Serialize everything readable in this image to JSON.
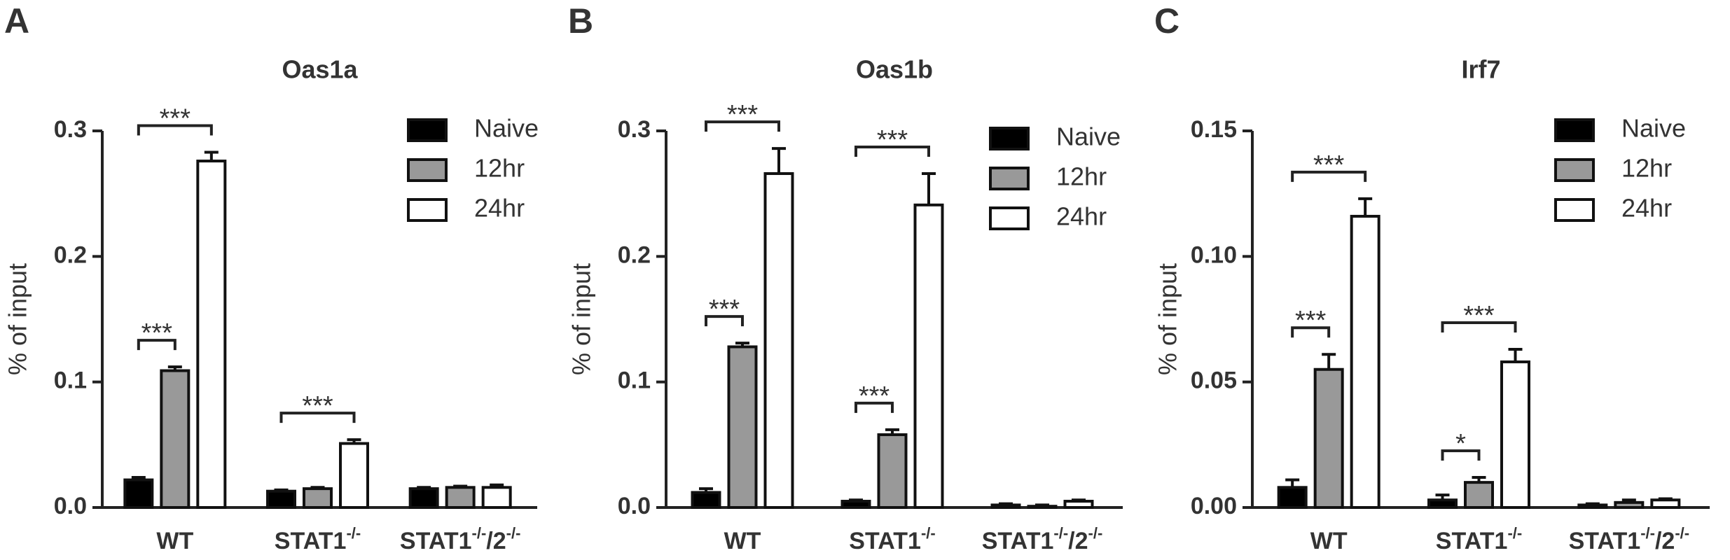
{
  "chart_data": [
    {
      "type": "bar",
      "panel": "A",
      "title": "Oas1a",
      "y_label": "% of input",
      "categories": [
        "WT",
        "STAT1-/-",
        "STAT1-/-/2-/-"
      ],
      "series": [
        {
          "name": "Naive",
          "color": "#000000",
          "values": [
            0.022,
            0.013,
            0.015
          ],
          "errors": [
            0.002,
            0.001,
            0.001
          ]
        },
        {
          "name": "12hr",
          "color": "#999999",
          "values": [
            0.109,
            0.015,
            0.016
          ],
          "errors": [
            0.003,
            0.001,
            0.001
          ]
        },
        {
          "name": "24hr",
          "color": "#ffffff",
          "values": [
            0.276,
            0.051,
            0.016
          ],
          "errors": [
            0.007,
            0.003,
            0.002
          ]
        }
      ],
      "ylim": [
        0,
        0.3
      ],
      "yticks": [
        {
          "value": 0,
          "label": "0.0"
        },
        0.1,
        0.2,
        0.3
      ],
      "legend": "upper right",
      "annotations": [
        {
          "text": "***",
          "category": 0,
          "series": [
            0,
            1
          ]
        },
        {
          "text": "***",
          "category": 0,
          "series": [
            0,
            2
          ]
        },
        {
          "text": "***",
          "category": 1,
          "series": [
            0,
            2
          ]
        }
      ]
    },
    {
      "type": "bar",
      "panel": "B",
      "title": "Oas1b",
      "y_label": "% of input",
      "categories": [
        "WT",
        "STAT1-/-",
        "STAT1-/-/2-/-"
      ],
      "series": [
        {
          "name": "Naive",
          "color": "#000000",
          "values": [
            0.012,
            0.005,
            0.002
          ],
          "errors": [
            0.003,
            0.001,
            0.001
          ]
        },
        {
          "name": "12hr",
          "color": "#999999",
          "values": [
            0.128,
            0.058,
            0.001
          ],
          "errors": [
            0.003,
            0.004,
            0.001
          ]
        },
        {
          "name": "24hr",
          "color": "#ffffff",
          "values": [
            0.266,
            0.241,
            0.005
          ],
          "errors": [
            0.02,
            0.025,
            0.001
          ]
        }
      ],
      "ylim": [
        0,
        0.3
      ],
      "yticks": [
        {
          "value": 0,
          "label": "0.0"
        },
        0.1,
        0.2,
        0.3
      ],
      "legend": "upper right",
      "annotations": [
        {
          "text": "***",
          "category": 0,
          "series": [
            0,
            1
          ]
        },
        {
          "text": "***",
          "category": 0,
          "series": [
            0,
            2
          ]
        },
        {
          "text": "***",
          "category": 1,
          "series": [
            0,
            1
          ]
        },
        {
          "text": "***",
          "category": 1,
          "series": [
            0,
            2
          ]
        }
      ]
    },
    {
      "type": "bar",
      "panel": "C",
      "title": "Irf7",
      "y_label": "% of input",
      "categories": [
        "WT",
        "STAT1-/-",
        "STAT1-/-/2-/-"
      ],
      "series": [
        {
          "name": "Naive",
          "color": "#000000",
          "values": [
            0.008,
            0.003,
            0.001
          ],
          "errors": [
            0.003,
            0.002,
            0.0005
          ]
        },
        {
          "name": "12hr",
          "color": "#999999",
          "values": [
            0.055,
            0.01,
            0.002
          ],
          "errors": [
            0.006,
            0.002,
            0.001
          ]
        },
        {
          "name": "24hr",
          "color": "#ffffff",
          "values": [
            0.116,
            0.058,
            0.003
          ],
          "errors": [
            0.007,
            0.005,
            0.0005
          ]
        }
      ],
      "ylim": [
        0,
        0.15
      ],
      "yticks": [
        {
          "value": 0,
          "label": "0.00"
        },
        {
          "value": 0.05,
          "label": "0.05"
        },
        {
          "value": 0.1,
          "label": "0.10"
        },
        {
          "value": 0.15,
          "label": "0.15"
        }
      ],
      "legend": "upper right",
      "annotations": [
        {
          "text": "***",
          "category": 0,
          "series": [
            0,
            1
          ]
        },
        {
          "text": "***",
          "category": 0,
          "series": [
            0,
            2
          ]
        },
        {
          "text": "*",
          "category": 1,
          "series": [
            0,
            1
          ]
        },
        {
          "text": "***",
          "category": 1,
          "series": [
            0,
            2
          ]
        }
      ]
    }
  ]
}
